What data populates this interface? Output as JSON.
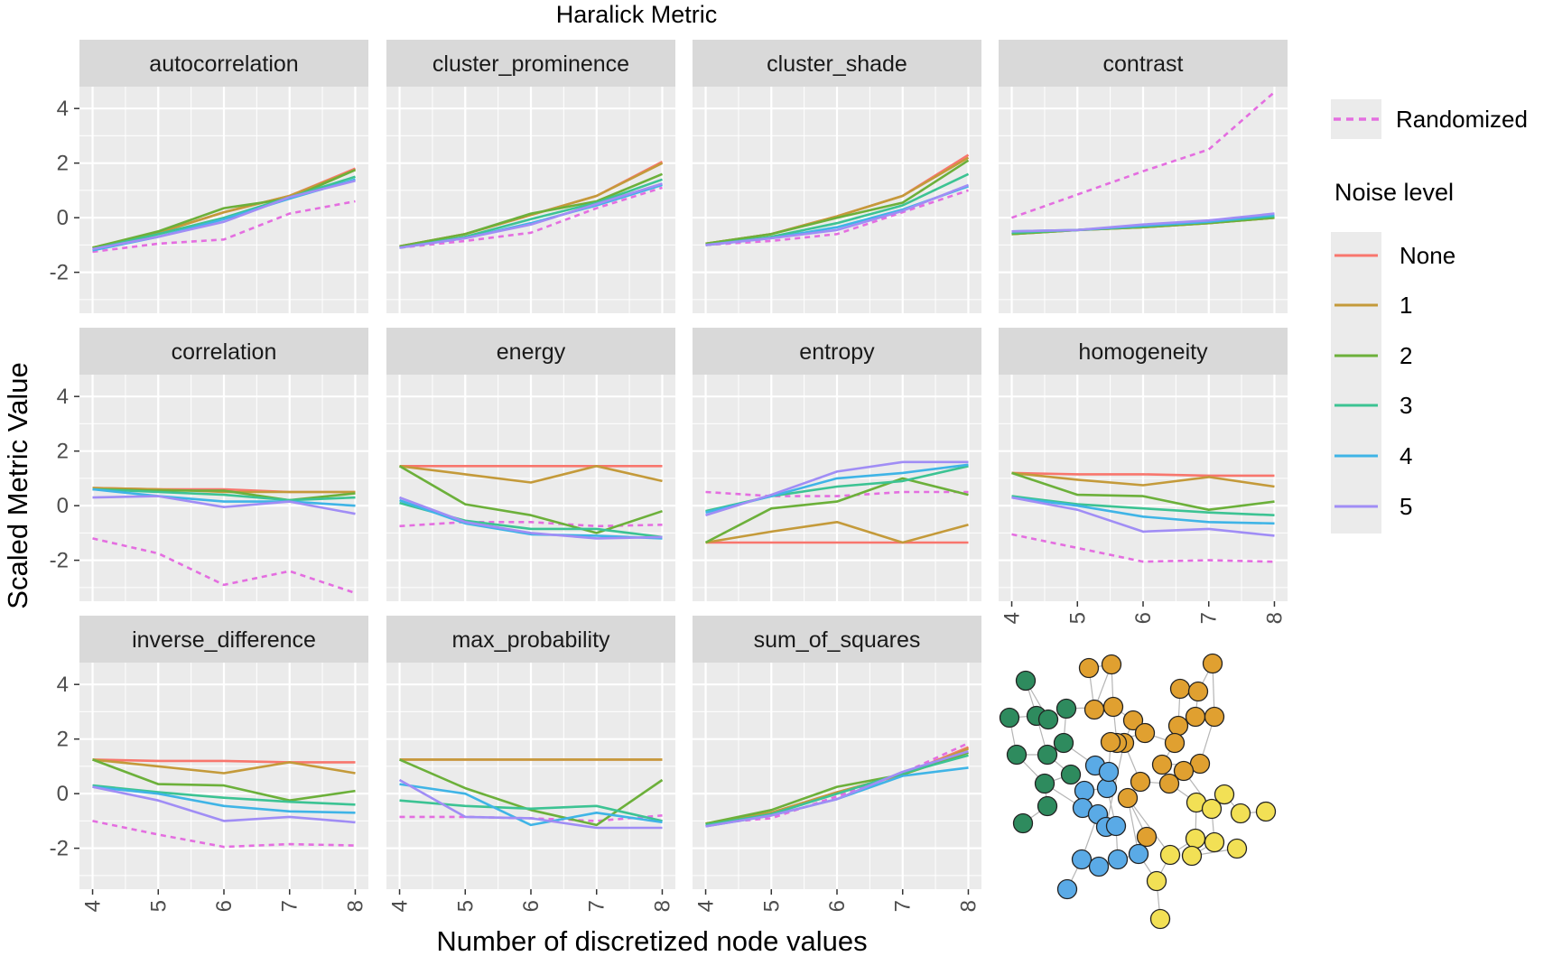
{
  "chart_data": {
    "type": "line",
    "title": "Haralick Metric",
    "xlabel": "Number of discretized node values",
    "ylabel": "Scaled Metric Value",
    "x": [
      4,
      5,
      6,
      7,
      8
    ],
    "ylim": [
      -3.5,
      4.8
    ],
    "yticks": [
      -2,
      0,
      2,
      4
    ],
    "ytick_labels": [
      "-2",
      "0",
      "2",
      "4"
    ],
    "xticks": [
      4,
      5,
      6,
      7,
      8
    ],
    "xtick_labels": [
      "4",
      "5",
      "6",
      "7",
      "8"
    ],
    "grid": true,
    "legend_position": "right",
    "legend": {
      "dashed_label": "Randomized",
      "title": "Noise level",
      "labels": [
        "None",
        "1",
        "2",
        "3",
        "4",
        "5"
      ]
    },
    "colors": {
      "None": "#f8766d",
      "1": "#c49a3a",
      "2": "#6cb03a",
      "3": "#3cc393",
      "4": "#3fb4e6",
      "5": "#a08df5",
      "Randomized": "#e46ee0",
      "panel_bg": "#ebebeb",
      "strip_bg": "#d9d9d9"
    },
    "panels": [
      {
        "name": "autocorrelation",
        "series": [
          {
            "name": "None",
            "values": [
              -1.1,
              -0.55,
              0.2,
              0.8,
              1.8
            ]
          },
          {
            "name": "1",
            "values": [
              -1.1,
              -0.55,
              0.2,
              0.8,
              1.75
            ]
          },
          {
            "name": "2",
            "values": [
              -1.1,
              -0.5,
              0.35,
              0.7,
              1.75
            ]
          },
          {
            "name": "3",
            "values": [
              -1.15,
              -0.6,
              0.0,
              0.75,
              1.5
            ]
          },
          {
            "name": "4",
            "values": [
              -1.2,
              -0.7,
              -0.05,
              0.7,
              1.4
            ]
          },
          {
            "name": "5",
            "values": [
              -1.15,
              -0.7,
              -0.15,
              0.75,
              1.35
            ]
          },
          {
            "name": "Randomized",
            "values": [
              -1.25,
              -0.95,
              -0.8,
              0.15,
              0.6
            ]
          }
        ]
      },
      {
        "name": "cluster_prominence",
        "series": [
          {
            "name": "None",
            "values": [
              -1.05,
              -0.6,
              0.1,
              0.8,
              2.05
            ]
          },
          {
            "name": "1",
            "values": [
              -1.05,
              -0.6,
              0.1,
              0.8,
              2.0
            ]
          },
          {
            "name": "2",
            "values": [
              -1.05,
              -0.6,
              0.15,
              0.6,
              1.6
            ]
          },
          {
            "name": "3",
            "values": [
              -1.1,
              -0.7,
              -0.05,
              0.55,
              1.4
            ]
          },
          {
            "name": "4",
            "values": [
              -1.1,
              -0.75,
              -0.2,
              0.45,
              1.2
            ]
          },
          {
            "name": "5",
            "values": [
              -1.1,
              -0.75,
              -0.25,
              0.5,
              1.25
            ]
          },
          {
            "name": "Randomized",
            "values": [
              -1.1,
              -0.85,
              -0.55,
              0.35,
              1.1
            ]
          }
        ]
      },
      {
        "name": "cluster_shade",
        "series": [
          {
            "name": "None",
            "values": [
              -0.95,
              -0.6,
              0.05,
              0.8,
              2.3
            ]
          },
          {
            "name": "1",
            "values": [
              -0.95,
              -0.6,
              0.05,
              0.8,
              2.2
            ]
          },
          {
            "name": "2",
            "values": [
              -0.95,
              -0.6,
              0.0,
              0.55,
              2.1
            ]
          },
          {
            "name": "3",
            "values": [
              -1.0,
              -0.7,
              -0.2,
              0.45,
              1.6
            ]
          },
          {
            "name": "4",
            "values": [
              -1.0,
              -0.75,
              -0.35,
              0.3,
              1.15
            ]
          },
          {
            "name": "5",
            "values": [
              -1.0,
              -0.75,
              -0.45,
              0.25,
              1.2
            ]
          },
          {
            "name": "Randomized",
            "values": [
              -1.0,
              -0.85,
              -0.6,
              0.2,
              1.0
            ]
          }
        ]
      },
      {
        "name": "contrast",
        "series": [
          {
            "name": "None",
            "values": [
              -0.6,
              -0.45,
              -0.35,
              -0.2,
              0.0
            ]
          },
          {
            "name": "1",
            "values": [
              -0.6,
              -0.45,
              -0.35,
              -0.2,
              0.0
            ]
          },
          {
            "name": "2",
            "values": [
              -0.6,
              -0.45,
              -0.35,
              -0.2,
              0.0
            ]
          },
          {
            "name": "3",
            "values": [
              -0.55,
              -0.45,
              -0.3,
              -0.15,
              0.05
            ]
          },
          {
            "name": "4",
            "values": [
              -0.5,
              -0.45,
              -0.3,
              -0.15,
              0.1
            ]
          },
          {
            "name": "5",
            "values": [
              -0.5,
              -0.45,
              -0.25,
              -0.1,
              0.15
            ]
          },
          {
            "name": "Randomized",
            "values": [
              0.0,
              0.85,
              1.7,
              2.5,
              4.6
            ]
          }
        ]
      },
      {
        "name": "correlation",
        "series": [
          {
            "name": "None",
            "values": [
              0.65,
              0.6,
              0.6,
              0.5,
              0.5
            ]
          },
          {
            "name": "1",
            "values": [
              0.65,
              0.6,
              0.5,
              0.5,
              0.5
            ]
          },
          {
            "name": "2",
            "values": [
              0.6,
              0.55,
              0.55,
              0.2,
              0.45
            ]
          },
          {
            "name": "3",
            "values": [
              0.6,
              0.5,
              0.4,
              0.2,
              0.3
            ]
          },
          {
            "name": "4",
            "values": [
              0.6,
              0.35,
              0.15,
              0.15,
              0.0
            ]
          },
          {
            "name": "5",
            "values": [
              0.3,
              0.35,
              -0.05,
              0.15,
              -0.3
            ]
          },
          {
            "name": "Randomized",
            "values": [
              -1.2,
              -1.75,
              -2.9,
              -2.4,
              -3.2
            ]
          }
        ]
      },
      {
        "name": "energy",
        "series": [
          {
            "name": "None",
            "values": [
              1.45,
              1.45,
              1.45,
              1.45,
              1.45
            ]
          },
          {
            "name": "1",
            "values": [
              1.45,
              1.15,
              0.85,
              1.45,
              0.9
            ]
          },
          {
            "name": "2",
            "values": [
              1.45,
              0.05,
              -0.35,
              -1.0,
              -0.2
            ]
          },
          {
            "name": "3",
            "values": [
              0.1,
              -0.55,
              -0.85,
              -0.85,
              -1.15
            ]
          },
          {
            "name": "4",
            "values": [
              0.2,
              -0.65,
              -1.05,
              -1.1,
              -1.2
            ]
          },
          {
            "name": "5",
            "values": [
              0.3,
              -0.6,
              -1.0,
              -1.2,
              -1.15
            ]
          },
          {
            "name": "Randomized",
            "values": [
              -0.75,
              -0.6,
              -0.6,
              -0.75,
              -0.7
            ]
          }
        ]
      },
      {
        "name": "entropy",
        "series": [
          {
            "name": "None",
            "values": [
              -1.35,
              -1.35,
              -1.35,
              -1.35,
              -1.35
            ]
          },
          {
            "name": "1",
            "values": [
              -1.35,
              -0.95,
              -0.6,
              -1.35,
              -0.7
            ]
          },
          {
            "name": "2",
            "values": [
              -1.35,
              -0.1,
              0.15,
              1.0,
              0.4
            ]
          },
          {
            "name": "3",
            "values": [
              -0.2,
              0.35,
              0.7,
              0.9,
              1.45
            ]
          },
          {
            "name": "4",
            "values": [
              -0.25,
              0.35,
              1.0,
              1.2,
              1.5
            ]
          },
          {
            "name": "5",
            "values": [
              -0.35,
              0.4,
              1.25,
              1.6,
              1.6
            ]
          },
          {
            "name": "Randomized",
            "values": [
              0.5,
              0.35,
              0.35,
              0.5,
              0.5
            ]
          }
        ]
      },
      {
        "name": "homogeneity",
        "series": [
          {
            "name": "None",
            "values": [
              1.2,
              1.15,
              1.15,
              1.1,
              1.1
            ]
          },
          {
            "name": "1",
            "values": [
              1.2,
              0.95,
              0.75,
              1.05,
              0.7
            ]
          },
          {
            "name": "2",
            "values": [
              1.2,
              0.4,
              0.35,
              -0.15,
              0.15
            ]
          },
          {
            "name": "3",
            "values": [
              0.35,
              0.05,
              -0.1,
              -0.25,
              -0.35
            ]
          },
          {
            "name": "4",
            "values": [
              0.3,
              0.0,
              -0.4,
              -0.6,
              -0.65
            ]
          },
          {
            "name": "5",
            "values": [
              0.3,
              -0.15,
              -0.95,
              -0.85,
              -1.1
            ]
          },
          {
            "name": "Randomized",
            "values": [
              -1.05,
              -1.55,
              -2.05,
              -2.0,
              -2.05
            ]
          }
        ]
      },
      {
        "name": "inverse_difference",
        "series": [
          {
            "name": "None",
            "values": [
              1.25,
              1.2,
              1.2,
              1.15,
              1.15
            ]
          },
          {
            "name": "1",
            "values": [
              1.25,
              1.0,
              0.75,
              1.15,
              0.75
            ]
          },
          {
            "name": "2",
            "values": [
              1.25,
              0.35,
              0.3,
              -0.25,
              0.1
            ]
          },
          {
            "name": "3",
            "values": [
              0.3,
              0.05,
              -0.15,
              -0.3,
              -0.4
            ]
          },
          {
            "name": "4",
            "values": [
              0.25,
              0.0,
              -0.45,
              -0.65,
              -0.7
            ]
          },
          {
            "name": "5",
            "values": [
              0.25,
              -0.25,
              -1.0,
              -0.85,
              -1.05
            ]
          },
          {
            "name": "Randomized",
            "values": [
              -1.0,
              -1.5,
              -1.95,
              -1.85,
              -1.9
            ]
          }
        ]
      },
      {
        "name": "max_probability",
        "series": [
          {
            "name": "None",
            "values": [
              1.25,
              1.25,
              1.25,
              1.25,
              1.25
            ]
          },
          {
            "name": "1",
            "values": [
              1.25,
              1.25,
              1.25,
              1.25,
              1.25
            ]
          },
          {
            "name": "2",
            "values": [
              1.25,
              0.2,
              -0.6,
              -1.15,
              0.5
            ]
          },
          {
            "name": "3",
            "values": [
              -0.25,
              -0.45,
              -0.55,
              -0.45,
              -1.0
            ]
          },
          {
            "name": "4",
            "values": [
              0.35,
              0.0,
              -1.15,
              -0.7,
              -1.05
            ]
          },
          {
            "name": "5",
            "values": [
              0.5,
              -0.85,
              -0.9,
              -1.25,
              -1.25
            ]
          },
          {
            "name": "Randomized",
            "values": [
              -0.85,
              -0.85,
              -0.9,
              -1.0,
              -0.8
            ]
          }
        ]
      },
      {
        "name": "sum_of_squares",
        "series": [
          {
            "name": "None",
            "values": [
              -1.1,
              -0.7,
              0.05,
              0.7,
              1.7
            ]
          },
          {
            "name": "1",
            "values": [
              -1.1,
              -0.7,
              0.05,
              0.7,
              1.65
            ]
          },
          {
            "name": "2",
            "values": [
              -1.1,
              -0.6,
              0.25,
              0.7,
              1.5
            ]
          },
          {
            "name": "3",
            "values": [
              -1.15,
              -0.75,
              0.0,
              0.75,
              1.4
            ]
          },
          {
            "name": "4",
            "values": [
              -1.2,
              -0.8,
              -0.2,
              0.65,
              0.95
            ]
          },
          {
            "name": "5",
            "values": [
              -1.2,
              -0.8,
              -0.2,
              0.8,
              1.55
            ]
          },
          {
            "name": "Randomized",
            "values": [
              -1.1,
              -0.9,
              -0.1,
              0.75,
              1.85
            ]
          }
        ]
      }
    ]
  },
  "network": {
    "node_colors": {
      "green": "#2e8b5e",
      "orange": "#e0a030",
      "blue": "#5aaae6",
      "yellow": "#f2e055"
    }
  }
}
